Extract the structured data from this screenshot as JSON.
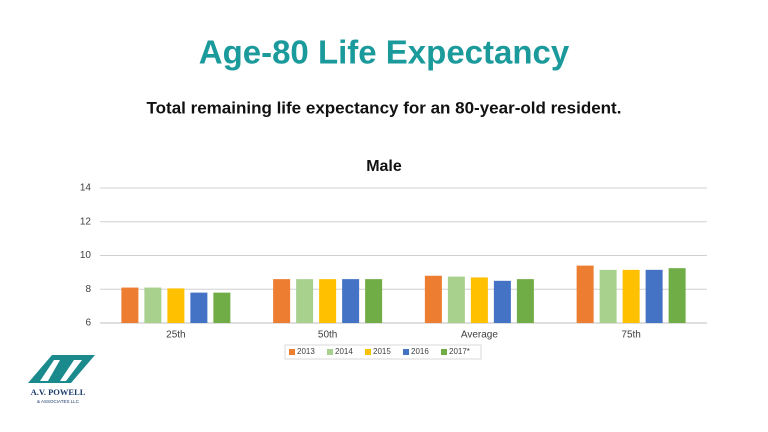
{
  "title": "Age-80 Life Expectancy",
  "subtitle": "Total remaining life expectancy for an 80-year-old resident.",
  "logo": {
    "name": "A.V. POWELL",
    "tagline": "& ASSOCIATES LLC"
  },
  "chart_data": {
    "type": "bar",
    "title": "Male",
    "categories": [
      "25th",
      "50th",
      "Average",
      "75th"
    ],
    "series": [
      {
        "name": "2013",
        "color": "#ed7d31",
        "values": [
          8.1,
          8.6,
          8.8,
          9.4
        ]
      },
      {
        "name": "2014",
        "color": "#a9d18e",
        "values": [
          8.1,
          8.6,
          8.75,
          9.15
        ]
      },
      {
        "name": "2015",
        "color": "#ffc000",
        "values": [
          8.05,
          8.6,
          8.7,
          9.15
        ]
      },
      {
        "name": "2016",
        "color": "#4472c4",
        "values": [
          7.8,
          8.6,
          8.5,
          9.15
        ]
      },
      {
        "name": "2017*",
        "color": "#70ad47",
        "values": [
          7.8,
          8.6,
          8.6,
          9.25
        ]
      }
    ],
    "ylim": [
      6,
      14
    ],
    "yticks": [
      6,
      8,
      10,
      12,
      14
    ],
    "grid": true,
    "legend": "bottom"
  }
}
